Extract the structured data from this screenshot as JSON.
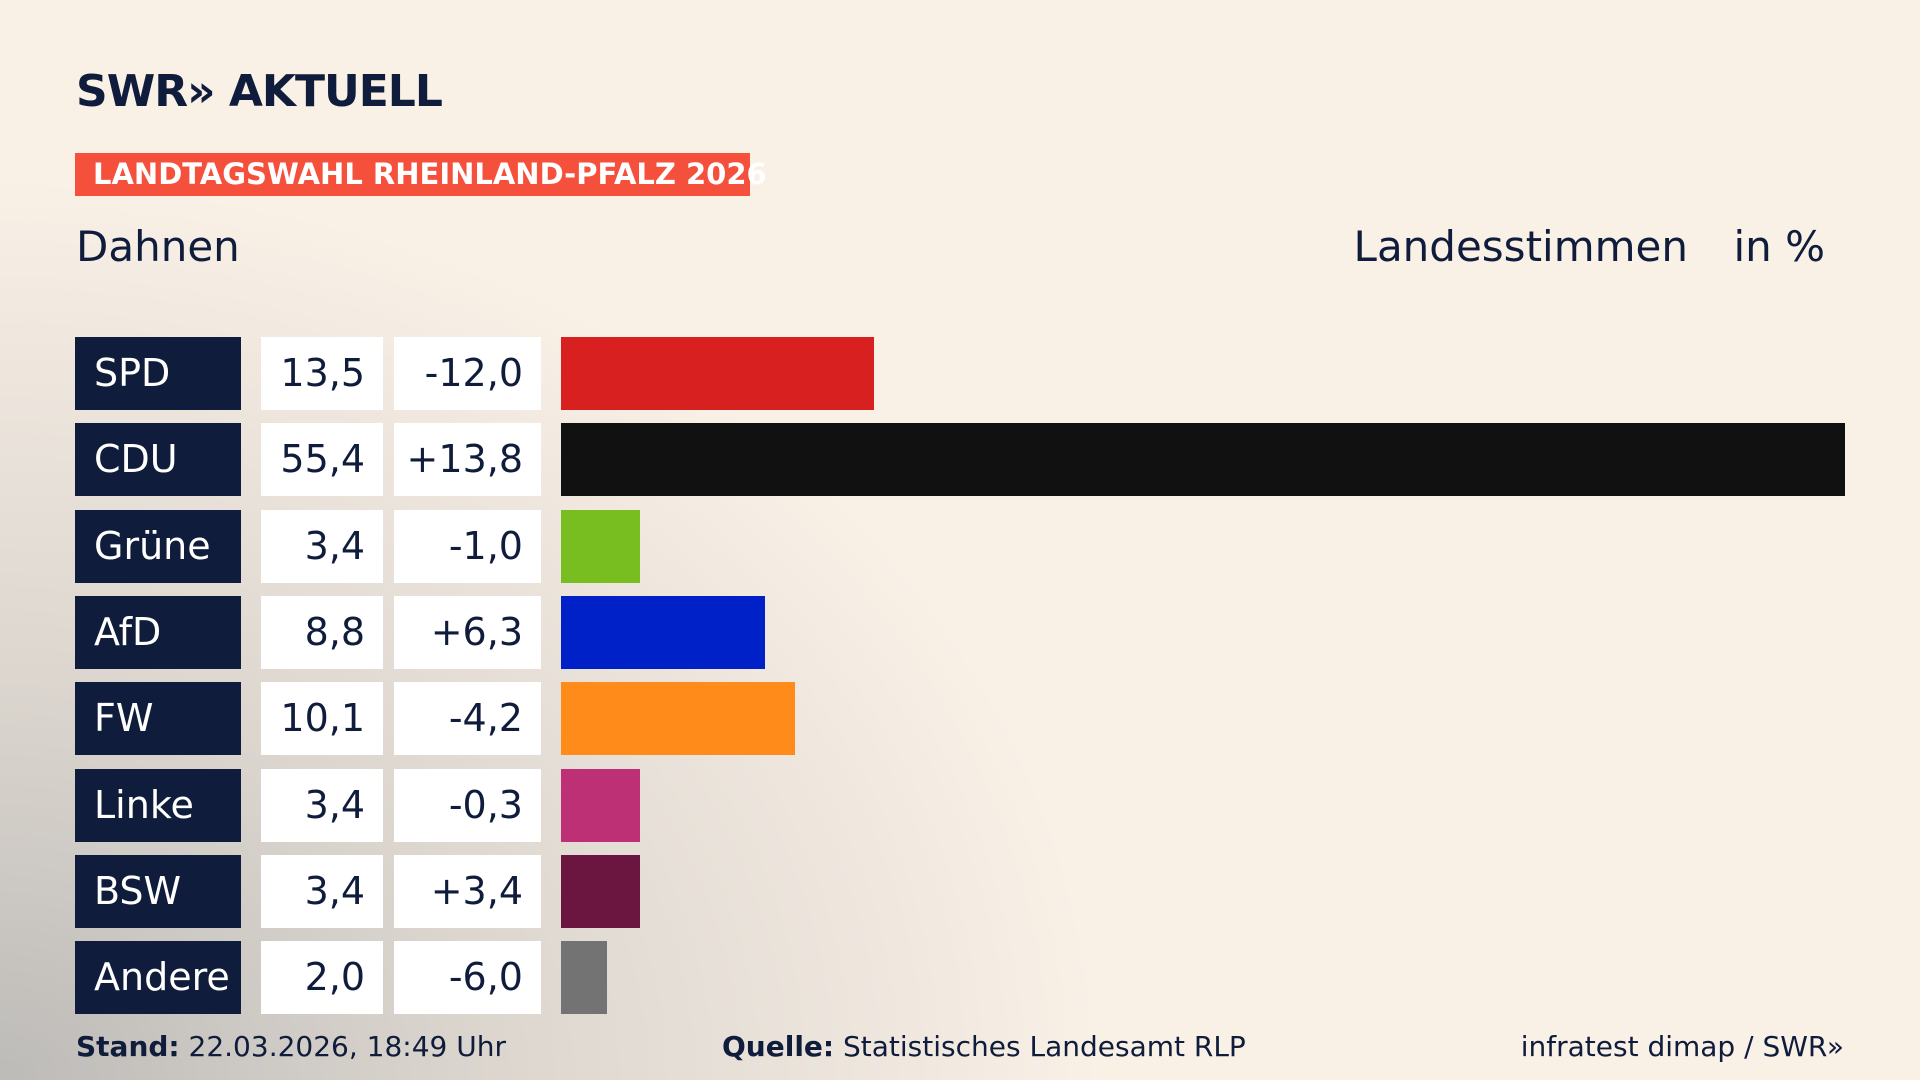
{
  "header": {
    "logo": "SWR» AKTUELL",
    "banner": "LANDTAGSWAHL RHEINLAND-PFALZ 2026",
    "place": "Dahnen",
    "measure": "Landesstimmen",
    "unit": "in %"
  },
  "chart_data": {
    "type": "bar",
    "categories": [
      "SPD",
      "CDU",
      "Grüne",
      "AfD",
      "FW",
      "Linke",
      "BSW",
      "Andere"
    ],
    "values": [
      13.5,
      55.4,
      3.4,
      8.8,
      10.1,
      3.4,
      3.4,
      2.0
    ],
    "value_labels": [
      "13,5",
      "55,4",
      "3,4",
      "8,8",
      "10,1",
      "3,4",
      "3,4",
      "2,0"
    ],
    "colors": [
      "#d7201f",
      "#111111",
      "#78be20",
      "#0021c8",
      "#ff8c1a",
      "#be3075",
      "#6b1641",
      "#737373"
    ],
    "changes": [
      -12.0,
      13.8,
      -1.0,
      6.3,
      -4.2,
      -0.3,
      3.4,
      -6.0
    ],
    "change_labels": [
      "-12,0",
      "+13,8",
      "-1,0",
      "+6,3",
      "-4,2",
      "-0,3",
      "+3,4",
      "-6,0"
    ]
  },
  "footer": {
    "stand_label": "Stand:",
    "stand": "22.03.2026, 18:49 Uhr",
    "source_label": "Quelle:",
    "source": "Statistisches Landesamt RLP",
    "credit": "infratest dimap / SWR»"
  }
}
